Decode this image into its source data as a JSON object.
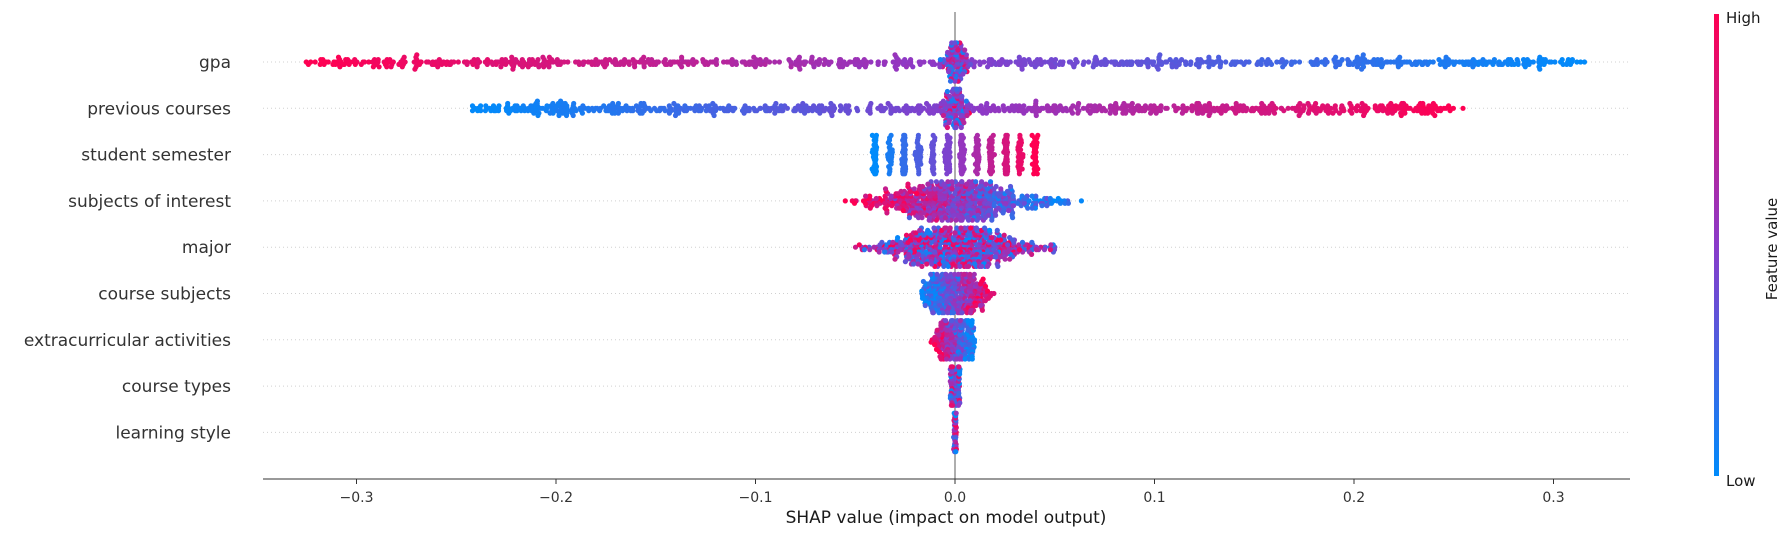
{
  "chart_data": {
    "type": "scatter",
    "subtype": "shap-beeswarm",
    "title": "",
    "xlabel": "SHAP value (impact on model output)",
    "xlim": [
      -0.35,
      0.34
    ],
    "xticks": [
      {
        "value": -0.3,
        "label": "−0.3"
      },
      {
        "value": -0.2,
        "label": "−0.2"
      },
      {
        "value": -0.1,
        "label": "−0.1"
      },
      {
        "value": 0.0,
        "label": "0.0"
      },
      {
        "value": 0.1,
        "label": "0.1"
      },
      {
        "value": 0.2,
        "label": "0.2"
      },
      {
        "value": 0.3,
        "label": "0.3"
      }
    ],
    "grid": "dotted horizontal row lines",
    "colorbar": {
      "title": "Feature value",
      "high_label": "High",
      "low_label": "Low",
      "low_color": "#008bfb",
      "high_color": "#ff0052"
    },
    "features": [
      {
        "name": "gpa",
        "shap_min": -0.32,
        "shap_max": 0.31,
        "correlation": "negative",
        "spread": "wide"
      },
      {
        "name": "previous courses",
        "shap_min": -0.24,
        "shap_max": 0.25,
        "correlation": "positive",
        "spread": "wide"
      },
      {
        "name": "student semester",
        "shap_min": -0.04,
        "shap_max": 0.04,
        "correlation": "positive",
        "spread": "banded"
      },
      {
        "name": "subjects of interest",
        "shap_min": -0.055,
        "shap_max": 0.065,
        "correlation": "negative",
        "spread": "dense-center"
      },
      {
        "name": "major",
        "shap_min": -0.05,
        "shap_max": 0.05,
        "correlation": "mixed",
        "spread": "dense-center"
      },
      {
        "name": "course subjects",
        "shap_min": -0.017,
        "shap_max": 0.02,
        "correlation": "positive",
        "spread": "narrow"
      },
      {
        "name": "extracurricular activities",
        "shap_min": -0.012,
        "shap_max": 0.01,
        "correlation": "negative",
        "spread": "narrow"
      },
      {
        "name": "course types",
        "shap_min": -0.003,
        "shap_max": 0.003,
        "correlation": "mixed",
        "spread": "very-narrow"
      },
      {
        "name": "learning style",
        "shap_min": -0.001,
        "shap_max": 0.001,
        "correlation": "mixed",
        "spread": "very-narrow"
      }
    ]
  }
}
